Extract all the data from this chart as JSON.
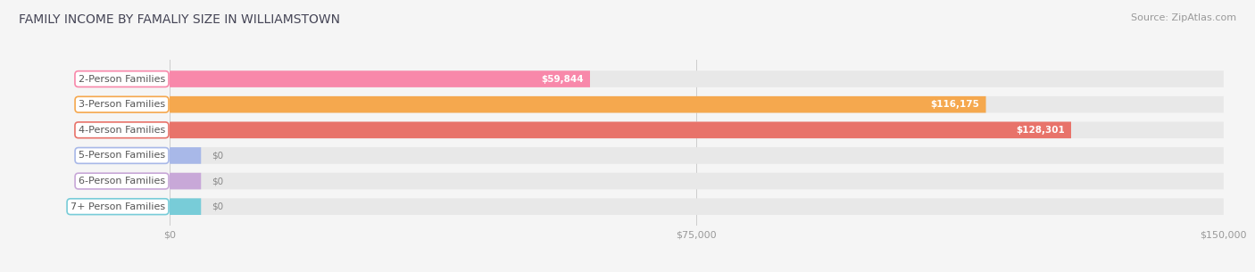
{
  "title": "FAMILY INCOME BY FAMALIY SIZE IN WILLIAMSTOWN",
  "source": "Source: ZipAtlas.com",
  "categories": [
    "2-Person Families",
    "3-Person Families",
    "4-Person Families",
    "5-Person Families",
    "6-Person Families",
    "7+ Person Families"
  ],
  "values": [
    59844,
    116175,
    128301,
    0,
    0,
    0
  ],
  "bar_colors": [
    "#f888aa",
    "#f5a84e",
    "#e8736a",
    "#a8b8e8",
    "#c8a8d8",
    "#78ccd8"
  ],
  "value_labels": [
    "$59,844",
    "$116,175",
    "$128,301",
    "$0",
    "$0",
    "$0"
  ],
  "xlim": [
    0,
    150000
  ],
  "xticks": [
    0,
    75000,
    150000
  ],
  "xticklabels": [
    "$0",
    "$75,000",
    "$150,000"
  ],
  "background_color": "#f5f5f5",
  "bar_background": "#e8e8e8",
  "title_fontsize": 10,
  "source_fontsize": 8,
  "label_fontsize": 8,
  "value_fontsize": 7.5,
  "bar_height": 0.65
}
